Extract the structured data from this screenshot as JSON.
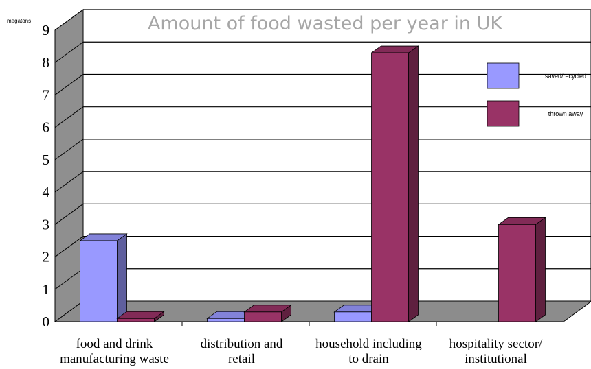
{
  "chart_data": {
    "type": "bar",
    "title": "Amount of food wasted per year in UK",
    "ylabel": "megatons",
    "xlabel": "",
    "ylim": [
      0,
      9
    ],
    "yticks": [
      "0",
      "1",
      "2",
      "3",
      "4",
      "5",
      "6",
      "7",
      "8",
      "9"
    ],
    "categories": [
      [
        "food and drink",
        "manufacturing waste"
      ],
      [
        "distribution and",
        "retail"
      ],
      [
        "household including",
        "to drain"
      ],
      [
        "hospitality sector/",
        "institutional"
      ]
    ],
    "series": [
      {
        "name": "saved/recycled",
        "values": [
          2.5,
          0.1,
          0.3,
          0
        ],
        "color": "#9999ff"
      },
      {
        "name": "thrown away",
        "values": [
          0.1,
          0.3,
          8.3,
          3.0
        ],
        "color": "#993366"
      }
    ],
    "legend_position": "top-right",
    "grid": true,
    "style": "3d"
  }
}
